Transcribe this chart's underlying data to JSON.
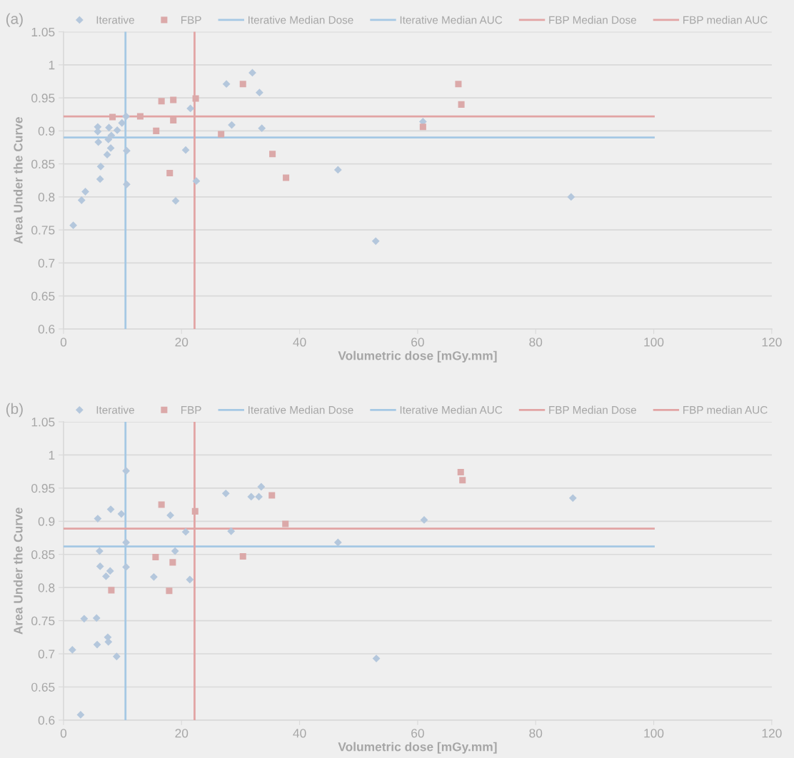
{
  "chart_data": [
    {
      "type": "scatter",
      "title": "(a)",
      "xlabel": "Volumetric dose [mGy.mm]",
      "ylabel": "Area Under the Curve",
      "xlim": [
        0,
        120
      ],
      "ylim": [
        0.6,
        1.05
      ],
      "xticks": [
        0,
        20,
        40,
        60,
        80,
        100,
        120
      ],
      "yticks": [
        0.6,
        0.65,
        0.7,
        0.75,
        0.8,
        0.85,
        0.9,
        0.95,
        1,
        1.05
      ],
      "grid": "y",
      "legend": "top",
      "series": [
        {
          "name": "Iterative",
          "type": "scatter",
          "marker": "diamond",
          "color": "#b4c7dc",
          "x": [
            1.65,
            3.06,
            3.7,
            5.8,
            5.8,
            5.9,
            6.3,
            6.2,
            7.7,
            7.6,
            8.1,
            8.0,
            7.4,
            9.1,
            9.9,
            10.6,
            10.7,
            10.7,
            13.5,
            18.2,
            19.0,
            20.7,
            21.5,
            22.5,
            27.6,
            28.5,
            32.0,
            33.2,
            33.6,
            46.5,
            52.9,
            60.9,
            86.0
          ],
          "values": [
            0.757,
            0.795,
            0.808,
            0.906,
            0.899,
            0.883,
            0.846,
            0.827,
            0.905,
            0.887,
            0.893,
            0.874,
            0.864,
            0.901,
            0.912,
            0.922,
            0.87,
            0.819,
            null,
            null,
            0.794,
            0.871,
            0.934,
            0.824,
            0.971,
            0.909,
            0.988,
            0.958,
            0.904,
            0.841,
            0.733,
            0.914,
            0.8
          ]
        },
        {
          "name": "FBP",
          "type": "scatter",
          "marker": "square",
          "color": "#dba9a9",
          "x": [
            8.3,
            13.0,
            15.7,
            16.6,
            18.6,
            18.6,
            18.0,
            22.4,
            26.7,
            30.4,
            35.4,
            37.7,
            60.9,
            66.9,
            67.4
          ],
          "values": [
            0.921,
            0.922,
            0.9,
            0.945,
            0.947,
            0.916,
            0.836,
            0.949,
            0.895,
            0.971,
            0.865,
            0.829,
            0.906,
            0.971,
            0.94
          ]
        },
        {
          "name": "Iterative Median Dose",
          "type": "line",
          "color": "#a5c8e4",
          "x": [
            10.5,
            10.5
          ],
          "values": [
            0.6,
            1.05
          ]
        },
        {
          "name": "Iterative Median AUC",
          "type": "line",
          "color": "#a5c8e4",
          "x": [
            0,
            100
          ],
          "values": [
            0.89,
            0.89
          ]
        },
        {
          "name": "FBP Median Dose",
          "type": "line",
          "color": "#e2a4a4",
          "x": [
            22.2,
            22.2
          ],
          "values": [
            0.6,
            1.05
          ]
        },
        {
          "name": "FBP median AUC",
          "type": "line",
          "color": "#e2a4a4",
          "x": [
            0,
            100
          ],
          "values": [
            0.922,
            0.922
          ]
        }
      ]
    },
    {
      "type": "scatter",
      "title": "(b)",
      "xlabel": "Volumetric dose [mGy.mm]",
      "ylabel": "Area Under the Curve",
      "xlim": [
        0,
        120
      ],
      "ylim": [
        0.6,
        1.05
      ],
      "xticks": [
        0,
        20,
        40,
        60,
        80,
        100,
        120
      ],
      "yticks": [
        0.6,
        0.65,
        0.7,
        0.75,
        0.8,
        0.85,
        0.9,
        0.95,
        1,
        1.05
      ],
      "grid": "y",
      "legend": "top",
      "series": [
        {
          "name": "Iterative",
          "type": "scatter",
          "marker": "diamond",
          "color": "#b4c7dc",
          "x": [
            10.6,
            8.0,
            9.8,
            5.8,
            18.1,
            10.6,
            6.1,
            18.9,
            20.7,
            6.2,
            7.9,
            7.2,
            10.6,
            15.3,
            21.4,
            3.5,
            5.6,
            7.5,
            7.6,
            5.7,
            1.5,
            9.0,
            2.9,
            27.5,
            31.8,
            33.1,
            33.5,
            28.4,
            46.5,
            86.3,
            53.0,
            61.1
          ],
          "values": [
            0.976,
            0.918,
            0.911,
            0.904,
            0.909,
            0.868,
            0.855,
            0.855,
            0.884,
            0.832,
            0.825,
            0.817,
            0.831,
            0.816,
            0.812,
            0.753,
            0.754,
            0.725,
            0.718,
            0.714,
            0.706,
            0.696,
            0.608,
            0.942,
            0.937,
            0.937,
            0.952,
            0.885,
            0.868,
            0.935,
            0.693,
            0.902
          ]
        },
        {
          "name": "FBP",
          "type": "scatter",
          "marker": "square",
          "color": "#dba9a9",
          "x": [
            8.1,
            17.9,
            18.5,
            15.6,
            35.3,
            37.6,
            30.4,
            16.6,
            22.3,
            67.3,
            67.6
          ],
          "values": [
            0.796,
            0.795,
            0.838,
            0.846,
            0.939,
            0.896,
            0.847,
            0.925,
            0.915,
            0.974,
            0.962
          ]
        },
        {
          "name": "Iterative Median Dose",
          "type": "line",
          "color": "#a5c8e4",
          "x": [
            10.5,
            10.5
          ],
          "values": [
            0.6,
            1.05
          ]
        },
        {
          "name": "Iterative Median AUC",
          "type": "line",
          "color": "#a5c8e4",
          "x": [
            0,
            100
          ],
          "values": [
            0.862,
            0.862
          ]
        },
        {
          "name": "FBP Median Dose",
          "type": "line",
          "color": "#e2a4a4",
          "x": [
            22.2,
            22.2
          ],
          "values": [
            0.6,
            1.05
          ]
        },
        {
          "name": "FBP median AUC",
          "type": "line",
          "color": "#e2a4a4",
          "x": [
            0,
            100
          ],
          "values": [
            0.889,
            0.889
          ]
        }
      ]
    }
  ]
}
